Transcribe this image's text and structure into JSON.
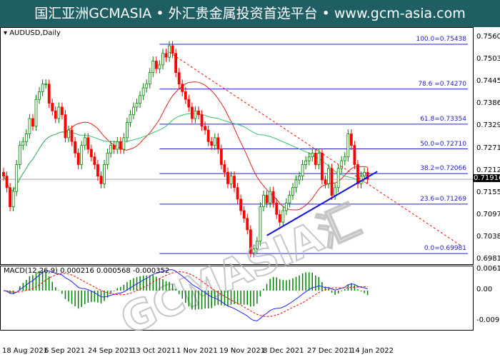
{
  "title": "国汇亚洲GCMASIA • 外汇贵金属投资首选平台 • www.gcm-asia.com",
  "chart_data": {
    "type": "candlestick",
    "symbol_label": "AUDUSD,Daily",
    "start_date": "2021-08-18",
    "closes": [
      0.72,
      0.717,
      0.712,
      0.716,
      0.723,
      0.728,
      0.729,
      0.731,
      0.735,
      0.733,
      0.74,
      0.742,
      0.744,
      0.744,
      0.739,
      0.737,
      0.735,
      0.738,
      0.736,
      0.73,
      0.732,
      0.729,
      0.726,
      0.723,
      0.728,
      0.73,
      0.727,
      0.725,
      0.723,
      0.72,
      0.718,
      0.723,
      0.726,
      0.728,
      0.727,
      0.729,
      0.727,
      0.73,
      0.734,
      0.736,
      0.738,
      0.739,
      0.741,
      0.743,
      0.744,
      0.747,
      0.75,
      0.748,
      0.749,
      0.752,
      0.751,
      0.754,
      0.752,
      0.747,
      0.744,
      0.742,
      0.74,
      0.738,
      0.735,
      0.737,
      0.736,
      0.733,
      0.732,
      0.729,
      0.728,
      0.73,
      0.727,
      0.723,
      0.721,
      0.718,
      0.72,
      0.717,
      0.714,
      0.711,
      0.709,
      0.706,
      0.7,
      0.701,
      0.703,
      0.712,
      0.715,
      0.713,
      0.716,
      0.713,
      0.71,
      0.708,
      0.711,
      0.713,
      0.715,
      0.717,
      0.719,
      0.72,
      0.723,
      0.724,
      0.725,
      0.726,
      0.723,
      0.726,
      0.719,
      0.718,
      0.722,
      0.715,
      0.717,
      0.722,
      0.724,
      0.725,
      0.731,
      0.728,
      0.723,
      0.718,
      0.72,
      0.721,
      0.7192
    ],
    "price_axis": [
      "0.75605",
      "0.75035",
      "0.74450",
      "0.73865",
      "0.73295",
      "0.72710",
      "0.72125",
      "0.71555",
      "0.70970",
      "0.70385",
      "0.69815"
    ],
    "price_range": [
      0.69815,
      0.75605
    ],
    "current_price": "0.71916",
    "fib_levels": [
      {
        "label": "100.0=0.75438",
        "price": 0.75438
      },
      {
        "label": "78.6 =0.74270",
        "price": 0.7427
      },
      {
        "label": "61.8=0.73354",
        "price": 0.73354
      },
      {
        "label": "50.0=0.72710",
        "price": 0.7271
      },
      {
        "label": "38.2=0.72066",
        "price": 0.72066
      },
      {
        "label": "23.6=0.71269",
        "price": 0.71269
      },
      {
        "label": "0.0=0.69981",
        "price": 0.69981
      }
    ],
    "trendlines": [
      {
        "color": "#1010e0",
        "style": "solid",
        "from": {
          "date": "2021-12-09",
          "price": 0.7045
        },
        "to": {
          "date": "2022-01-26",
          "price": 0.7212
        }
      },
      {
        "color": "#ff0000",
        "style": "dashed",
        "from": {
          "date": "2021-10-28",
          "price": 0.7523
        },
        "to": {
          "date": "2022-03-03",
          "price": 0.7017
        }
      }
    ],
    "moving_averages": [
      {
        "color": "#e02020",
        "period": 20
      },
      {
        "color": "#30c070",
        "period": 50
      }
    ],
    "macd": {
      "label": "MACD(12,26,9) 0.000216 0.000568 -0.000352",
      "axis": [
        "0.006197",
        "0.00",
        "-0.009212"
      ],
      "range": [
        -0.009212,
        0.006197
      ]
    },
    "date_labels": [
      "18 Aug 2021",
      "6 Sep 2021",
      "24 Sep 2021",
      "13 Oct 2021",
      "1 Nov 2021",
      "19 Nov 2021",
      "8 Dec 2021",
      "27 Dec 2021",
      "14 Jan 2022"
    ],
    "colors": {
      "up": "#008000",
      "down": "#ff0000",
      "macd_line": "#2020ff",
      "signal_line": "#ff0000",
      "histogram": "#008000"
    }
  }
}
